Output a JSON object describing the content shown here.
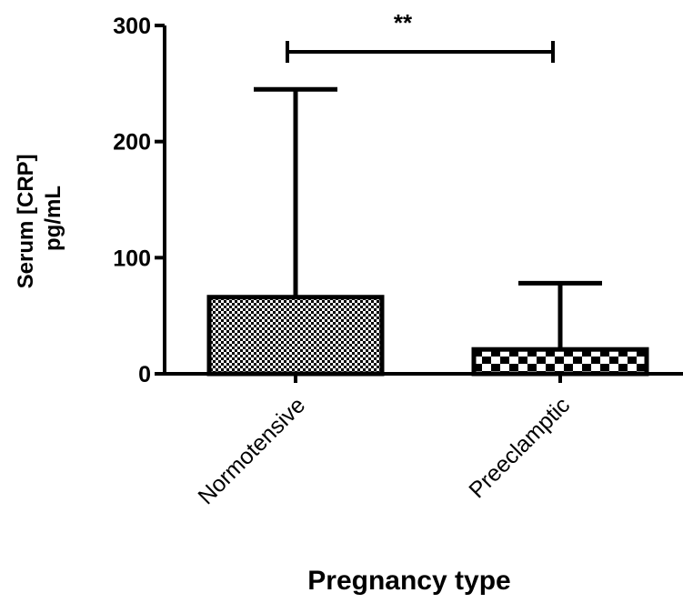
{
  "chart_data": {
    "type": "bar",
    "categories": [
      "Normotensive",
      "Preeclamptic"
    ],
    "values": [
      66,
      21
    ],
    "error_upper": [
      245,
      78
    ],
    "xlabel": "Pregnancy type",
    "ylabel_lines": [
      "Serum [CRP]",
      "pg/mL"
    ],
    "ylim": [
      0,
      300
    ],
    "yticks": [
      0,
      100,
      200,
      300
    ],
    "ytick_labels": [
      "0",
      "100",
      "200",
      "300"
    ],
    "significance": {
      "label": "**",
      "between": [
        "Normotensive",
        "Preeclamptic"
      ]
    },
    "bar_patterns": [
      "fine-checker",
      "coarse-checker"
    ],
    "grid": false,
    "legend": "none"
  }
}
